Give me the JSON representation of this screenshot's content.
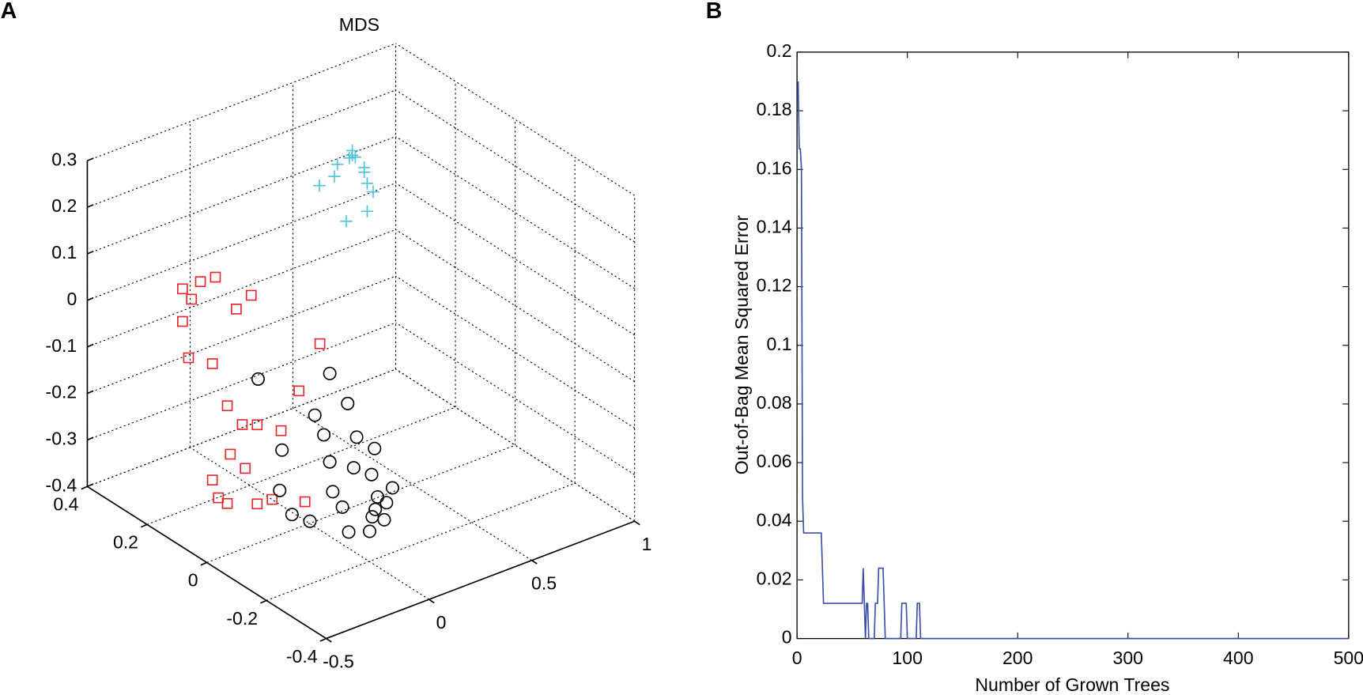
{
  "chart_data": [
    {
      "type": "scatter3d",
      "label": "A",
      "title": "MDS",
      "xlim": [
        -0.5,
        1
      ],
      "ylim": [
        -0.4,
        0.4
      ],
      "zlim": [
        -0.4,
        0.3
      ],
      "xticks": [
        -0.5,
        0,
        0.5,
        1
      ],
      "yticks": [
        -0.4,
        -0.2,
        0,
        0.2,
        0.4
      ],
      "zticks": [
        -0.4,
        -0.3,
        -0.2,
        -0.1,
        0,
        0.1,
        0.2,
        0.3
      ],
      "grid": true,
      "series": [
        {
          "marker": "square",
          "color": "#e8262b",
          "x": [
            -0.4,
            -0.4,
            -0.4,
            -0.4,
            -0.4,
            -0.4,
            -0.4,
            -0.4,
            -0.4,
            -0.4,
            -0.4,
            -0.4,
            -0.4,
            -0.4,
            -0.4,
            -0.4,
            -0.4,
            -0.4,
            -0.4,
            -0.4,
            -0.4,
            -0.4,
            -0.4
          ],
          "y": [
            0.15,
            0.09,
            0.04,
            0.12,
            -0.03,
            -0.08,
            0.15,
            0.13,
            0.05,
            -0.31,
            -0.24,
            0.0,
            -0.05,
            -0.1,
            -0.18,
            -0.01,
            -0.06,
            0.05,
            0.03,
            -0.1,
            -0.15,
            -0.26,
            0.0
          ],
          "z": [
            0.11,
            0.15,
            0.18,
            0.1,
            0.14,
            0.19,
            0.04,
            -0.03,
            -0.01,
            0.18,
            0.05,
            -0.08,
            -0.1,
            -0.08,
            -0.06,
            -0.18,
            -0.19,
            -0.26,
            -0.29,
            -0.25,
            -0.22,
            -0.18,
            -0.29
          ]
        },
        {
          "marker": "circle",
          "color": "#000000",
          "x": [
            0.2,
            0.2,
            0.2,
            0.2,
            0.2,
            0.2,
            0.2,
            0.2,
            0.2,
            0.2,
            0.2,
            0.2,
            0.2,
            0,
            0.2,
            0.2,
            -0.1,
            0,
            0,
            0,
            -0.1,
            -0.1,
            -0.1,
            0
          ],
          "y": [
            0.31,
            0.07,
            0.12,
            0.01,
            0.09,
            -0.02,
            -0.08,
            0.23,
            0.07,
            -0.01,
            -0.07,
            -0.14,
            -0.12,
            0.1,
            0.06,
            -0.09,
            -0.01,
            -0.11,
            -0.22,
            -0.25,
            -0.07,
            -0.2,
            -0.27,
            -0.21
          ],
          "z": [
            -0.25,
            -0.14,
            -0.25,
            -0.18,
            -0.28,
            -0.24,
            -0.24,
            -0.37,
            -0.33,
            -0.31,
            -0.3,
            -0.3,
            -0.34,
            -0.37,
            -0.39,
            -0.34,
            -0.36,
            -0.32,
            -0.28,
            -0.29,
            -0.35,
            -0.32,
            -0.29,
            -0.3
          ]
        },
        {
          "marker": "plus",
          "color": "#4fc3d9",
          "x": [
            0.6,
            0.6,
            0.6,
            0.6,
            0.6,
            0.6,
            0.6,
            0.6,
            0.6,
            0.6,
            0.6,
            0.6,
            0.6
          ],
          "y": [
            0.27,
            0.28,
            0.26,
            0.32,
            0.23,
            0.33,
            0.23,
            0.38,
            0.22,
            0.2,
            0.29,
            0.22,
            0.27
          ],
          "z": [
            0.18,
            0.17,
            0.18,
            0.14,
            0.17,
            0.11,
            0.16,
            0.07,
            0.14,
            0.13,
            0.03,
            0.08,
            0.19
          ]
        }
      ]
    },
    {
      "type": "line",
      "label": "B",
      "xlabel": "Number of Grown Trees",
      "ylabel": "Out-of-Bag Mean Squared Error",
      "xlim": [
        0,
        500
      ],
      "ylim": [
        0,
        0.2
      ],
      "xticks": [
        0,
        100,
        200,
        300,
        400,
        500
      ],
      "yticks": [
        0,
        0.02,
        0.04,
        0.06,
        0.08,
        0.1,
        0.12,
        0.14,
        0.16,
        0.18,
        0.2
      ],
      "color": "#3a50a8",
      "x": [
        1,
        2,
        3,
        4,
        5,
        6,
        22,
        23,
        24,
        59,
        60,
        61,
        62,
        63,
        64,
        65,
        70,
        71,
        73,
        74,
        78,
        79,
        80,
        94,
        95,
        99,
        100,
        108,
        109,
        111,
        112,
        500
      ],
      "values": [
        0.19,
        0.167,
        0.167,
        0.16,
        0.048,
        0.036,
        0.036,
        0.024,
        0.012,
        0.012,
        0.024,
        0.012,
        0,
        0.012,
        0.012,
        0,
        0,
        0.012,
        0.012,
        0.024,
        0.024,
        0.012,
        0,
        0,
        0.012,
        0.012,
        0,
        0,
        0.012,
        0.012,
        0,
        0
      ]
    }
  ]
}
